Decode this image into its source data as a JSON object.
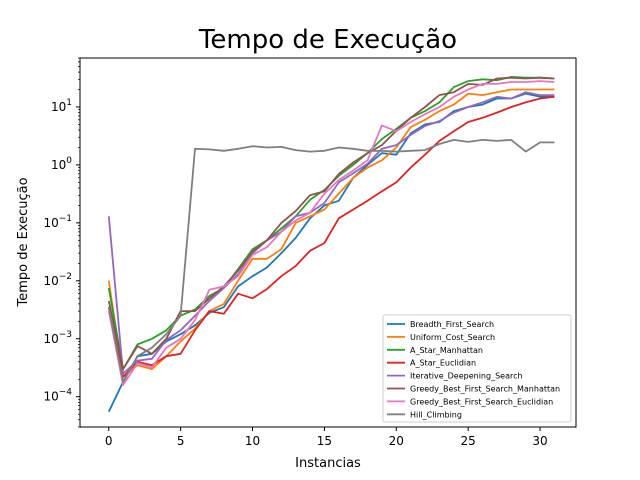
{
  "chart_data": {
    "type": "line",
    "title": "Tempo de Execução",
    "xlabel": "Instancias",
    "ylabel": "Tempo de Execução",
    "xlim": [
      -2,
      32.5
    ],
    "ylim": [
      3e-05,
      70
    ],
    "yscale": "log",
    "x_ticks": [
      0,
      5,
      10,
      15,
      20,
      25,
      30
    ],
    "y_ticks": [
      {
        "value": 0.0001,
        "label": "10−4",
        "base": "10",
        "exp": "−4"
      },
      {
        "value": 0.001,
        "label": "10−3",
        "base": "10",
        "exp": "−3"
      },
      {
        "value": 0.01,
        "label": "10−2",
        "base": "10",
        "exp": "−2"
      },
      {
        "value": 0.1,
        "label": "10−1",
        "base": "10",
        "exp": "−1"
      },
      {
        "value": 1,
        "label": "100",
        "base": "10",
        "exp": "0"
      },
      {
        "value": 10,
        "label": "101",
        "base": "10",
        "exp": "1"
      }
    ],
    "grid": false,
    "legend_position": "lower-right",
    "x": [
      0,
      1,
      2,
      3,
      4,
      5,
      6,
      7,
      8,
      9,
      10,
      11,
      12,
      13,
      14,
      15,
      16,
      17,
      18,
      19,
      20,
      21,
      22,
      23,
      24,
      25,
      26,
      27,
      28,
      29,
      30,
      31
    ],
    "series": [
      {
        "name": "Breadth_First_Search",
        "color": "#1f77b4",
        "values": [
          5.5e-05,
          0.00018,
          0.0005,
          0.00055,
          0.0009,
          0.0012,
          0.0017,
          0.0028,
          0.0035,
          0.008,
          0.012,
          0.017,
          0.03,
          0.055,
          0.12,
          0.2,
          0.24,
          0.6,
          1.0,
          1.6,
          1.5,
          3.5,
          5.0,
          5.5,
          8.5,
          10,
          11,
          14,
          14,
          17,
          15,
          15
        ]
      },
      {
        "name": "Uniform_Cost_Search",
        "color": "#ff7f0e",
        "values": [
          0.01,
          0.00022,
          0.00035,
          0.0003,
          0.0005,
          0.0009,
          0.0015,
          0.003,
          0.004,
          0.01,
          0.024,
          0.024,
          0.035,
          0.1,
          0.13,
          0.17,
          0.32,
          0.6,
          0.9,
          1.2,
          2.0,
          4.5,
          6.0,
          8.5,
          11,
          17,
          16,
          18,
          20,
          20,
          20,
          20
        ]
      },
      {
        "name": "A_Star_Manhattan",
        "color": "#2ca02c",
        "values": [
          0.0075,
          0.0003,
          0.0008,
          0.001,
          0.0014,
          0.0025,
          0.0032,
          0.0055,
          0.0075,
          0.016,
          0.035,
          0.05,
          0.08,
          0.13,
          0.25,
          0.37,
          0.65,
          1.0,
          1.6,
          2.8,
          4.2,
          6.5,
          8.5,
          12,
          22,
          28,
          30,
          29,
          33,
          32,
          32,
          31
        ]
      },
      {
        "name": "A_Star_Euclidian",
        "color": "#d62728",
        "values": [
          0.0035,
          0.00022,
          0.0004,
          0.00035,
          0.0005,
          0.00055,
          0.0014,
          0.003,
          0.0027,
          0.006,
          0.005,
          0.0072,
          0.012,
          0.018,
          0.033,
          0.045,
          0.12,
          0.17,
          0.24,
          0.35,
          0.5,
          0.9,
          1.5,
          2.6,
          3.8,
          5.5,
          6.5,
          8,
          10,
          12,
          14,
          15
        ]
      },
      {
        "name": "Iterative_Deepening_Search",
        "color": "#9467bd",
        "values": [
          0.13,
          0.00025,
          0.00042,
          0.00045,
          0.00095,
          0.0014,
          0.0025,
          0.0045,
          0.0075,
          0.013,
          0.03,
          0.05,
          0.07,
          0.13,
          0.15,
          0.22,
          0.5,
          0.72,
          1.05,
          1.9,
          2.2,
          3.3,
          4.7,
          5.7,
          8,
          10,
          12,
          15,
          14,
          18,
          16,
          16
        ]
      },
      {
        "name": "Greedy_Best_First_Search_Manhattan",
        "color": "#8c564b",
        "values": [
          0.0045,
          0.0003,
          0.00075,
          0.00055,
          0.001,
          0.003,
          0.003,
          0.005,
          0.008,
          0.015,
          0.032,
          0.05,
          0.1,
          0.16,
          0.3,
          0.35,
          0.7,
          1.1,
          1.6,
          2.2,
          3.9,
          6.5,
          10,
          16,
          18,
          25,
          24,
          31,
          32,
          31,
          32,
          31
        ]
      },
      {
        "name": "Greedy_Best_First_Search_Euclidian",
        "color": "#e377c2",
        "values": [
          0.003,
          0.00016,
          0.00038,
          0.00032,
          0.0007,
          0.001,
          0.0021,
          0.007,
          0.008,
          0.012,
          0.028,
          0.038,
          0.07,
          0.11,
          0.15,
          0.32,
          0.55,
          0.8,
          1.2,
          4.8,
          3.8,
          5.5,
          7.5,
          10,
          15,
          20,
          25,
          25,
          27,
          27,
          28,
          27
        ]
      },
      {
        "name": "Hill_Climbing",
        "color": "#7f7f7f",
        "values": [
          0.0035,
          0.00018,
          0.0005,
          0.0007,
          0.0012,
          0.0025,
          1.9,
          1.85,
          1.75,
          1.9,
          2.1,
          2.0,
          2.05,
          1.8,
          1.7,
          1.75,
          2.0,
          1.9,
          1.75,
          1.75,
          1.7,
          1.75,
          1.8,
          2.3,
          2.7,
          2.5,
          2.7,
          2.6,
          2.7,
          1.7,
          2.45,
          2.45
        ]
      }
    ]
  }
}
